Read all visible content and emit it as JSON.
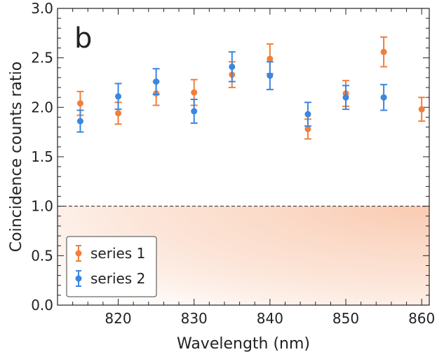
{
  "chart_data": {
    "type": "scatter",
    "title": "",
    "panel_label": "b",
    "xlabel": "Wavelength (nm)",
    "ylabel": "Coincidence counts ratio",
    "xlim": [
      812,
      861
    ],
    "ylim": [
      0.0,
      3.0
    ],
    "xticks": [
      820,
      830,
      840,
      850,
      860
    ],
    "xtick_labels": [
      "820",
      "830",
      "840",
      "850",
      "860"
    ],
    "yticks": [
      0.0,
      0.5,
      1.0,
      1.5,
      2.0,
      2.5,
      3.0
    ],
    "ytick_labels": [
      "0.0",
      "0.5",
      "1.0",
      "1.5",
      "2.0",
      "2.5",
      "3.0"
    ],
    "threshold": 1.0,
    "shaded_region": [
      0.0,
      1.0
    ],
    "legend_position": "bottom-left",
    "series": [
      {
        "name": "series 1",
        "color": "#f07f3c",
        "x": [
          815,
          820,
          825,
          830,
          835,
          840,
          845,
          850,
          855,
          860
        ],
        "y": [
          2.04,
          1.94,
          2.14,
          2.15,
          2.33,
          2.49,
          1.78,
          2.14,
          2.56,
          1.98
        ],
        "err": [
          0.12,
          0.11,
          0.12,
          0.13,
          0.13,
          0.15,
          0.1,
          0.13,
          0.15,
          0.12
        ]
      },
      {
        "name": "series 2",
        "color": "#3b86e0",
        "x": [
          815,
          820,
          825,
          830,
          835,
          840,
          845,
          850,
          855
        ],
        "y": [
          1.86,
          2.11,
          2.26,
          1.96,
          2.41,
          2.32,
          1.93,
          2.1,
          2.1
        ],
        "err": [
          0.11,
          0.13,
          0.13,
          0.12,
          0.15,
          0.14,
          0.12,
          0.12,
          0.13
        ]
      }
    ]
  }
}
